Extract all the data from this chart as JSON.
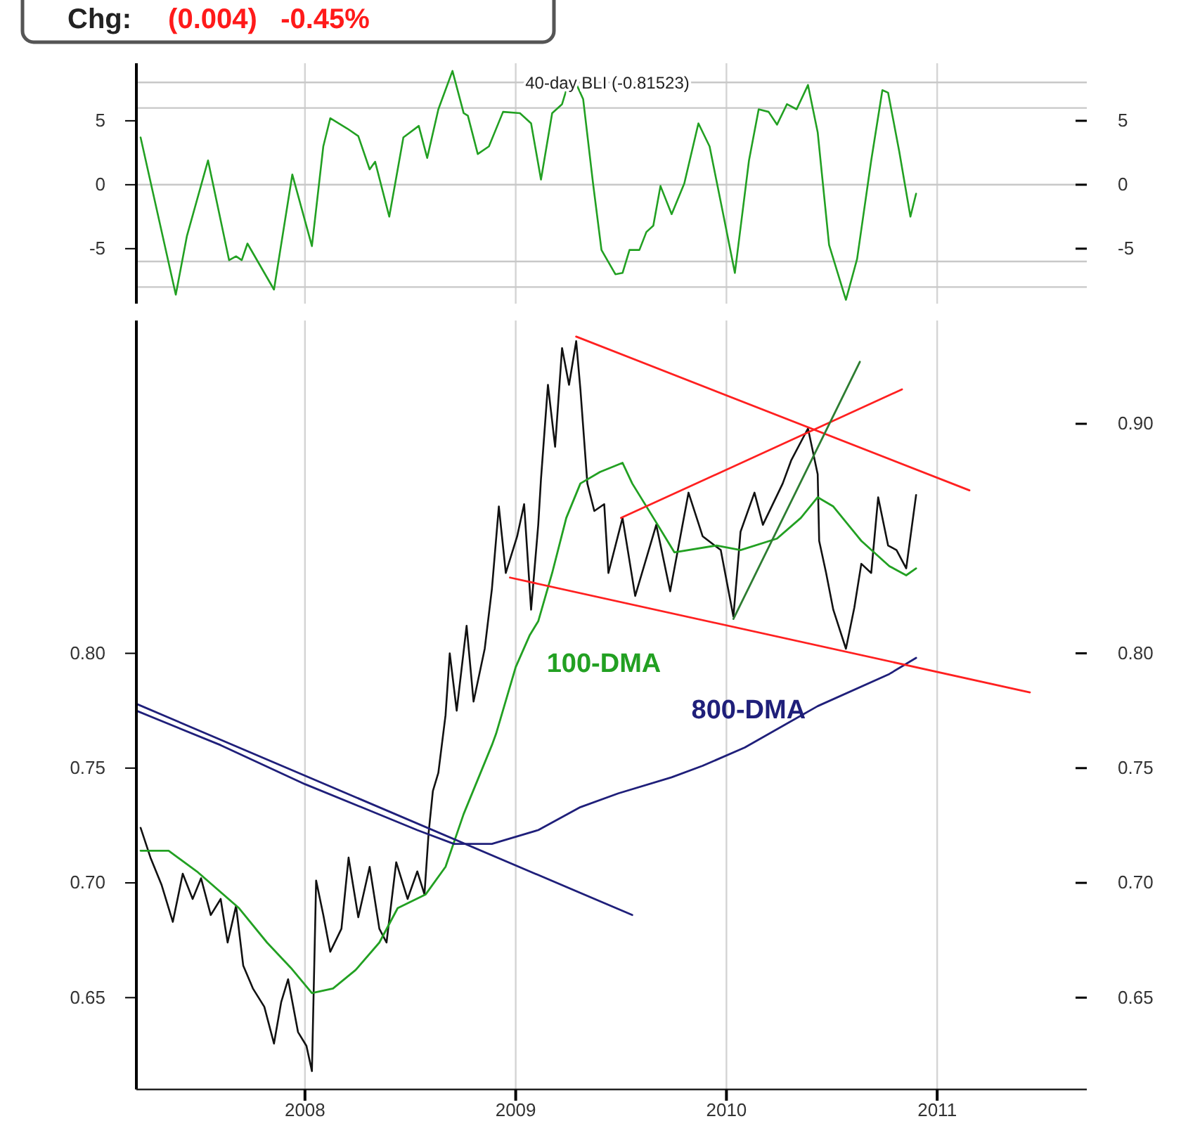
{
  "chart_data": [
    {
      "type": "line",
      "title": "40-day BLI (-0.81523)",
      "annotations": [
        "Chg:",
        "(0.004)   -0.45%"
      ],
      "xlim": [
        2007.2,
        2011.71
      ],
      "xticks": [
        2008,
        2009,
        2010,
        2011
      ],
      "ylim": [
        -9.3,
        9.5
      ],
      "yticks": [
        -5,
        0,
        5
      ],
      "y2lim": [
        -9.3,
        9.5
      ],
      "y2ticks": [
        -5,
        0,
        5
      ],
      "tick_labels": "y",
      "grid": "x",
      "ref_lines": [
        {
          "axis": "y",
          "value": 8,
          "color": "#c8c8c8"
        },
        {
          "axis": "y",
          "value": 6,
          "color": "#c8c8c8"
        },
        {
          "axis": "y",
          "value": 0,
          "color": "#c8c8c8"
        },
        {
          "axis": "y",
          "value": -6,
          "color": "#c8c8c8"
        },
        {
          "axis": "y",
          "value": -8,
          "color": "#c8c8c8"
        }
      ],
      "series": [
        {
          "color": "#22a022",
          "x": [
            2007.22,
            2007.387,
            2007.44,
            2007.54,
            2007.64,
            2007.673,
            2007.7,
            2007.727,
            2007.853,
            2007.94,
            2008.033,
            2008.087,
            2008.12,
            2008.2,
            2008.253,
            2008.307,
            2008.333,
            2008.4,
            2008.467,
            2008.54,
            2008.58,
            2008.633,
            2008.7,
            2008.753,
            2008.773,
            2008.82,
            2008.873,
            2008.94,
            2009.02,
            2009.073,
            2009.12,
            2009.173,
            2009.22,
            2009.253,
            2009.287,
            2009.32,
            2009.367,
            2009.407,
            2009.473,
            2009.507,
            2009.54,
            2009.587,
            2009.62,
            2009.653,
            2009.687,
            2009.74,
            2009.8,
            2009.867,
            2009.92,
            2009.987,
            2010.04,
            2010.107,
            2010.153,
            2010.2,
            2010.24,
            2010.287,
            2010.333,
            2010.387,
            2010.433,
            2010.487,
            2010.567,
            2010.62,
            2010.687,
            2010.74,
            2010.767,
            2010.82,
            2010.873,
            2010.9
          ],
          "values": [
            3.7,
            -8.6,
            -4.0,
            1.9,
            -5.9,
            -5.6,
            -5.9,
            -4.6,
            -8.2,
            0.8,
            -4.8,
            3.0,
            5.2,
            4.4,
            3.8,
            1.2,
            1.8,
            -2.5,
            3.7,
            4.6,
            2.1,
            5.9,
            8.9,
            5.6,
            5.4,
            2.4,
            3.0,
            5.7,
            5.6,
            4.8,
            0.4,
            5.6,
            6.3,
            8.1,
            7.9,
            6.7,
            0.1,
            -5.1,
            -7.0,
            -6.9,
            -5.1,
            -5.1,
            -3.7,
            -3.2,
            -0.1,
            -2.3,
            0.1,
            4.8,
            3.0,
            -2.5,
            -6.9,
            1.9,
            5.9,
            5.7,
            4.7,
            6.3,
            5.9,
            7.8,
            4.1,
            -4.7,
            -9.0,
            -5.8,
            1.9,
            7.4,
            7.2,
            2.6,
            -2.5,
            -0.7
          ]
        }
      ]
    },
    {
      "type": "line",
      "xlim": [
        2007.2,
        2011.71
      ],
      "xticks": [
        2008,
        2009,
        2010,
        2011
      ],
      "ylim": [
        0.61,
        0.945
      ],
      "yticks": [
        {
          "value": 0.65,
          "label": "0.65"
        },
        {
          "value": 0.7,
          "label": "0.70"
        },
        {
          "value": 0.75,
          "label": "0.75"
        },
        {
          "value": 0.8,
          "label": "0.80"
        }
      ],
      "y2lim": [
        0.61,
        0.945
      ],
      "y2ticks": [
        {
          "value": 0.65,
          "label": "0.65"
        },
        {
          "value": 0.7,
          "label": "0.70"
        },
        {
          "value": 0.75,
          "label": "0.75"
        },
        {
          "value": 0.8,
          "label": "0.80"
        },
        {
          "value": 0.9,
          "label": "0.90"
        }
      ],
      "grid": "x",
      "series": [
        {
          "color": "#111111",
          "x": [
            2007.22,
            2007.267,
            2007.32,
            2007.373,
            2007.42,
            2007.467,
            2007.507,
            2007.553,
            2007.6,
            2007.633,
            2007.673,
            2007.707,
            2007.753,
            2007.807,
            2007.853,
            2007.887,
            2007.92,
            2007.967,
            2008.007,
            2008.033,
            2008.053,
            2008.087,
            2008.12,
            2008.173,
            2008.207,
            2008.253,
            2008.307,
            2008.353,
            2008.387,
            2008.433,
            2008.487,
            2008.533,
            2008.567,
            2008.587,
            2008.607,
            2008.633,
            2008.667,
            2008.687,
            2008.72,
            2008.767,
            2008.8,
            2008.853,
            2008.887,
            2008.92,
            2008.953,
            2009.007,
            2009.04,
            2009.073,
            2009.107,
            2009.12,
            2009.153,
            2009.187,
            2009.22,
            2009.253,
            2009.287,
            2009.307,
            2009.34,
            2009.373,
            2009.42,
            2009.44,
            2009.507,
            2009.567,
            2009.667,
            2009.733,
            2009.82,
            2009.887,
            2009.973,
            2010.033,
            2010.067,
            2010.133,
            2010.173,
            2010.267,
            2010.307,
            2010.387,
            2010.433,
            2010.44,
            2010.473,
            2010.507,
            2010.567,
            2010.607,
            2010.64,
            2010.687,
            2010.72,
            2010.767,
            2010.807,
            2010.853,
            2010.9
          ],
          "values": [
            0.724,
            0.711,
            0.699,
            0.683,
            0.704,
            0.693,
            0.702,
            0.686,
            0.693,
            0.674,
            0.69,
            0.664,
            0.654,
            0.646,
            0.63,
            0.648,
            0.658,
            0.635,
            0.629,
            0.618,
            0.701,
            0.686,
            0.67,
            0.68,
            0.711,
            0.685,
            0.707,
            0.68,
            0.674,
            0.709,
            0.693,
            0.705,
            0.695,
            0.722,
            0.74,
            0.748,
            0.773,
            0.8,
            0.775,
            0.812,
            0.779,
            0.802,
            0.828,
            0.864,
            0.835,
            0.851,
            0.865,
            0.819,
            0.856,
            0.876,
            0.917,
            0.89,
            0.933,
            0.917,
            0.936,
            0.915,
            0.874,
            0.862,
            0.865,
            0.835,
            0.859,
            0.825,
            0.856,
            0.827,
            0.87,
            0.851,
            0.845,
            0.816,
            0.853,
            0.87,
            0.856,
            0.874,
            0.884,
            0.898,
            0.878,
            0.849,
            0.835,
            0.819,
            0.802,
            0.82,
            0.839,
            0.835,
            0.868,
            0.847,
            0.845,
            0.837,
            0.869
          ]
        },
        {
          "name": "100-DMA",
          "color": "#22a022",
          "x": [
            2007.22,
            2007.353,
            2007.487,
            2007.687,
            2007.82,
            2007.933,
            2008.033,
            2008.133,
            2008.24,
            2008.353,
            2008.44,
            2008.573,
            2008.667,
            2008.753,
            2008.887,
            2008.907,
            2009.0,
            2009.067,
            2009.107,
            2009.173,
            2009.24,
            2009.307,
            2009.4,
            2009.507,
            2009.553,
            2009.667,
            2009.753,
            2009.953,
            2010.067,
            2010.24,
            2010.353,
            2010.433,
            2010.507,
            2010.64,
            2010.773,
            2010.853,
            2010.9
          ],
          "values": [
            0.714,
            0.714,
            0.705,
            0.689,
            0.674,
            0.663,
            0.652,
            0.654,
            0.662,
            0.674,
            0.689,
            0.695,
            0.707,
            0.73,
            0.76,
            0.765,
            0.794,
            0.808,
            0.814,
            0.835,
            0.859,
            0.874,
            0.879,
            0.883,
            0.874,
            0.857,
            0.844,
            0.847,
            0.845,
            0.85,
            0.859,
            0.868,
            0.864,
            0.849,
            0.838,
            0.834,
            0.837
          ]
        },
        {
          "name": "800-DMA",
          "color": "#1f1f7a",
          "x": [
            2007.2,
            2007.6,
            2008.0,
            2008.267,
            2008.533,
            2008.707,
            2008.887,
            2009.107,
            2009.307,
            2009.487,
            2009.74,
            2009.887,
            2010.087,
            2010.433,
            2010.773,
            2010.9
          ],
          "values": [
            0.775,
            0.76,
            0.743,
            0.733,
            0.723,
            0.717,
            0.717,
            0.723,
            0.733,
            0.739,
            0.746,
            0.751,
            0.759,
            0.777,
            0.791,
            0.798
          ]
        },
        {
          "color": "#1f1f7a",
          "x": [
            2007.2,
            2009.553
          ],
          "values": [
            0.778,
            0.686
          ]
        },
        {
          "color": "#ff2020",
          "x": [
            2009.287,
            2011.153
          ],
          "values": [
            0.938,
            0.871
          ]
        },
        {
          "color": "#ff2020",
          "x": [
            2009.5,
            2010.833
          ],
          "values": [
            0.859,
            0.915
          ]
        },
        {
          "color": "#ff2020",
          "x": [
            2008.973,
            2011.44
          ],
          "values": [
            0.833,
            0.783
          ]
        },
        {
          "color": "#2e7d32",
          "x": [
            2010.033,
            2010.633
          ],
          "values": [
            0.815,
            0.927
          ]
        }
      ]
    }
  ]
}
